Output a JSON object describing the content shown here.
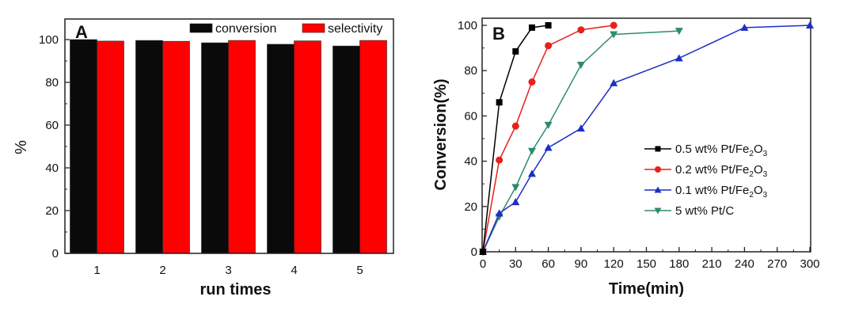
{
  "chart_data": [
    {
      "type": "bar",
      "panel_label": "A",
      "title": "",
      "xlabel": "run times",
      "ylabel": "%",
      "categories": [
        "1",
        "2",
        "3",
        "4",
        "5"
      ],
      "ylim": [
        0,
        110
      ],
      "yticks": [
        0,
        20,
        40,
        60,
        80,
        100
      ],
      "legend_position": "top-right",
      "series": [
        {
          "name": "conversion",
          "color": "#0a0a0a",
          "values": [
            100,
            99.6,
            98.5,
            97.8,
            97.0
          ]
        },
        {
          "name": "selectivity",
          "color": "#ff0000",
          "values": [
            99.3,
            99.2,
            99.6,
            99.4,
            99.6
          ]
        }
      ]
    },
    {
      "type": "line",
      "panel_label": "B",
      "title": "",
      "xlabel": "Time(min)",
      "ylabel": "Conversion(%)",
      "xlim": [
        0,
        300
      ],
      "ylim": [
        0,
        103
      ],
      "xticks": [
        0,
        30,
        60,
        90,
        120,
        150,
        180,
        210,
        240,
        270,
        300
      ],
      "yticks": [
        0,
        20,
        40,
        60,
        80,
        100
      ],
      "legend_position": "center-right",
      "series": [
        {
          "name": "0.5 wt% Pt/Fe2O3",
          "label_main": "0.5 wt% Pt/Fe",
          "sub1": "2",
          "mid": "O",
          "sub2": "3",
          "color": "#000000",
          "marker": "square",
          "x": [
            0,
            15,
            30,
            45,
            60
          ],
          "y": [
            0,
            66,
            88.5,
            99,
            100
          ]
        },
        {
          "name": "0.2 wt% Pt/Fe2O3",
          "label_main": "0.2 wt% Pt/Fe",
          "sub1": "2",
          "mid": "O",
          "sub2": "3",
          "color": "#e8201c",
          "marker": "circle",
          "x": [
            0,
            15,
            30,
            45,
            60,
            90,
            120
          ],
          "y": [
            0,
            40.5,
            55.5,
            75,
            91,
            98,
            100
          ]
        },
        {
          "name": "0.1 wt% Pt/Fe2O3",
          "label_main": "0.1 wt% Pt/Fe",
          "sub1": "2",
          "mid": "O",
          "sub2": "3",
          "color": "#1c2fc4",
          "marker": "triangle-up",
          "x": [
            0,
            15,
            30,
            45,
            60,
            90,
            120,
            180,
            240,
            300
          ],
          "y": [
            0,
            17,
            22,
            34.5,
            46,
            54.5,
            74.5,
            85.5,
            99,
            100
          ]
        },
        {
          "name": "5 wt% Pt/C",
          "label_main": "5 wt% Pt/C",
          "sub1": "",
          "mid": "",
          "sub2": "",
          "color": "#2e8b6e",
          "marker": "triangle-down",
          "x": [
            0,
            15,
            30,
            45,
            60,
            90,
            120,
            180
          ],
          "y": [
            0,
            15.5,
            28.5,
            44.5,
            56,
            82.5,
            96,
            97.5
          ]
        }
      ]
    }
  ]
}
